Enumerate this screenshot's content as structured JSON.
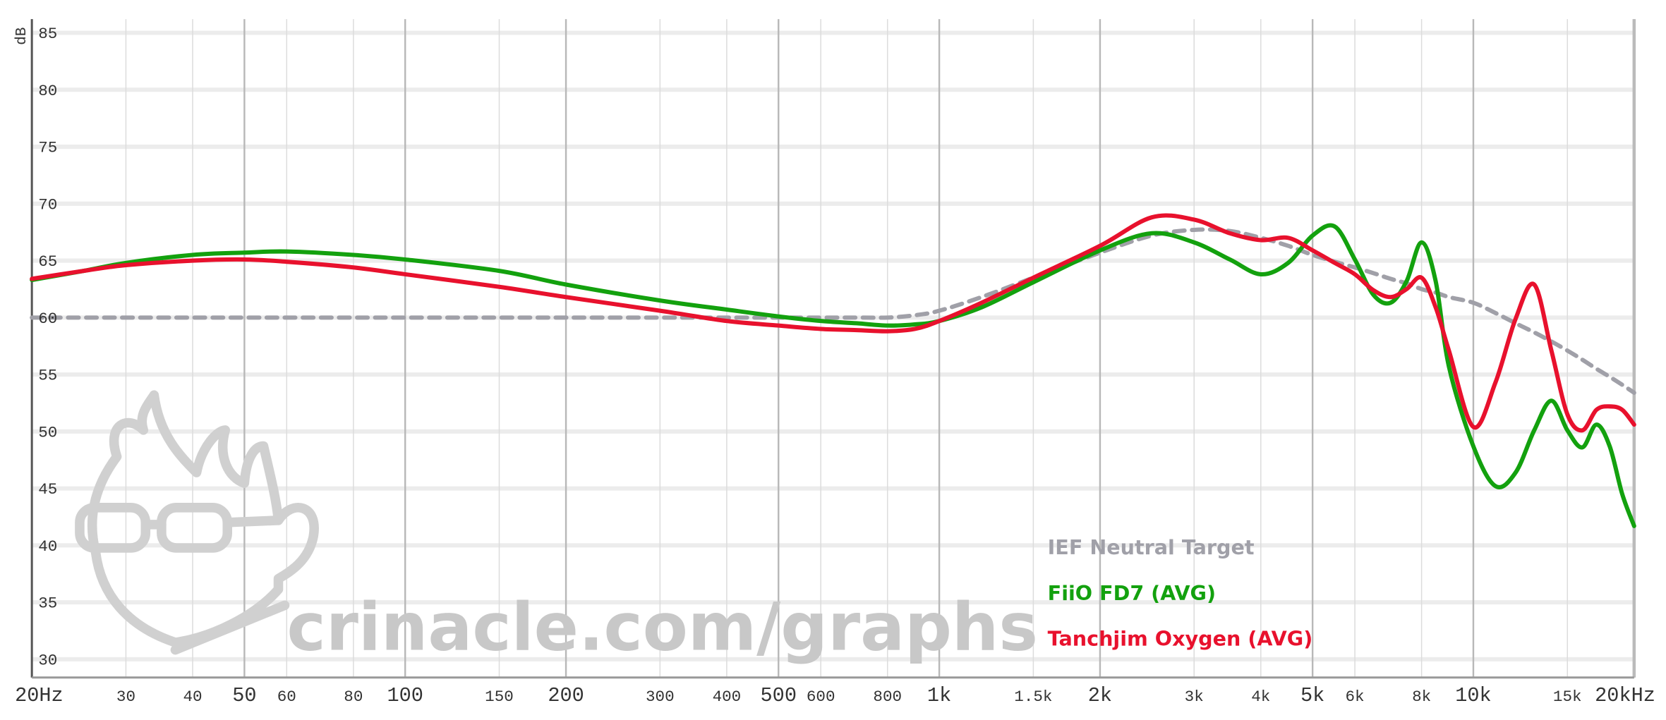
{
  "chart_data": {
    "type": "line",
    "y_label": "dB",
    "watermark": "crinacle.com/graphs",
    "log_x": true,
    "grid": true,
    "legend": "lower center",
    "xlim": [
      20,
      20000
    ],
    "ylim": [
      28.4,
      86.2
    ],
    "yticks": [
      30,
      35,
      40,
      45,
      50,
      55,
      60,
      65,
      70,
      75,
      80,
      85
    ],
    "xticks": [
      {
        "value": 20,
        "label": "20Hz"
      },
      30,
      40,
      50,
      60,
      80,
      100,
      150,
      200,
      300,
      400,
      500,
      600,
      800,
      {
        "value": 1000,
        "label": "1k"
      },
      {
        "value": 1500,
        "label": "1.5k"
      },
      {
        "value": 2000,
        "label": "2k"
      },
      {
        "value": 3000,
        "label": "3k"
      },
      {
        "value": 4000,
        "label": "4k"
      },
      {
        "value": 5000,
        "label": "5k"
      },
      {
        "value": 6000,
        "label": "6k"
      },
      {
        "value": 8000,
        "label": "8k"
      },
      {
        "value": 10000,
        "label": "10k"
      },
      {
        "value": 15000,
        "label": "15k"
      },
      {
        "value": 20000,
        "label": "20kHz"
      }
    ],
    "x": [
      20,
      25,
      30,
      40,
      50,
      60,
      80,
      100,
      150,
      200,
      300,
      400,
      500,
      600,
      700,
      800,
      900,
      1000,
      1200,
      1500,
      2000,
      2500,
      3000,
      3500,
      4000,
      4500,
      5000,
      5500,
      6000,
      6500,
      7000,
      7500,
      8000,
      8500,
      9000,
      10000,
      11000,
      12000,
      13000,
      14000,
      15000,
      16000,
      17000,
      18000,
      19000,
      20000
    ],
    "series": [
      {
        "name": "IEF Neutral Target",
        "color": "#a0a0a8",
        "style": "dashed",
        "values": [
          60,
          60,
          60,
          60,
          60,
          60,
          60,
          60,
          60,
          60,
          60,
          60,
          60,
          60,
          60,
          60,
          60.2,
          60.6,
          61.8,
          63.5,
          65.7,
          67.2,
          67.7,
          67.6,
          67,
          66.3,
          65.5,
          64.9,
          64.4,
          63.9,
          63.4,
          63,
          62.5,
          62.2,
          61.8,
          61.3,
          60.4,
          59.5,
          58.7,
          57.9,
          57.1,
          56.3,
          55.5,
          54.8,
          54.1,
          53.4
        ]
      },
      {
        "name": "FiiO FD7 (AVG)",
        "color": "#13a10e",
        "style": "solid",
        "values": [
          63.3,
          64.1,
          64.8,
          65.5,
          65.7,
          65.8,
          65.5,
          65.1,
          64.1,
          62.9,
          61.5,
          60.7,
          60.1,
          59.7,
          59.5,
          59.3,
          59.4,
          59.7,
          60.9,
          63.1,
          65.9,
          67.4,
          66.6,
          65.1,
          63.8,
          64.8,
          67.2,
          68,
          65.1,
          62,
          61.3,
          63.2,
          66.6,
          63.2,
          55.7,
          48.7,
          45.2,
          46.4,
          50.1,
          52.7,
          50.1,
          48.6,
          50.6,
          48.7,
          44.5,
          41.7
        ]
      },
      {
        "name": "Tanchjim Oxygen (AVG)",
        "color": "#e8112d",
        "style": "solid",
        "values": [
          63.4,
          64.1,
          64.6,
          65,
          65.1,
          64.9,
          64.4,
          63.8,
          62.7,
          61.8,
          60.6,
          59.7,
          59.3,
          59,
          58.9,
          58.8,
          59,
          59.7,
          61.3,
          63.5,
          66.3,
          68.8,
          68.6,
          67.4,
          66.8,
          67,
          65.9,
          64.8,
          63.8,
          62.4,
          61.8,
          62.5,
          63.5,
          60.9,
          57.1,
          50.4,
          54.3,
          59.9,
          62.9,
          57.1,
          51.5,
          50.1,
          51.9,
          52.2,
          51.9,
          50.6
        ]
      }
    ]
  }
}
